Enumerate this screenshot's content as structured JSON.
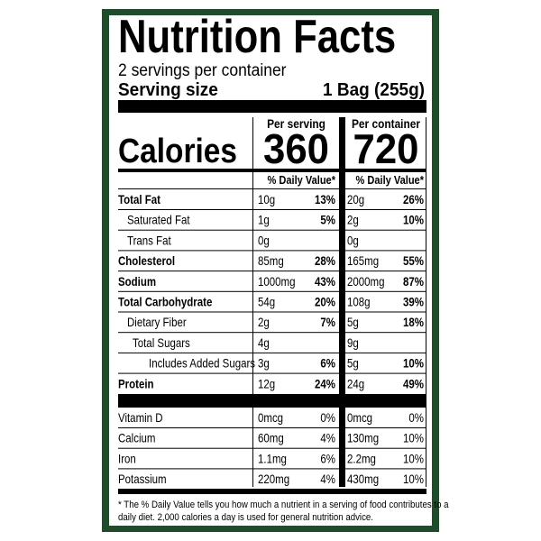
{
  "title": "Nutrition Facts",
  "servings": "2 servings per container",
  "serving_size": {
    "label": "Serving size",
    "value": "1 Bag (255g)"
  },
  "columns": {
    "per_serving": "Per serving",
    "per_container": "Per container",
    "daily_value_serving": "% Daily Value*",
    "daily_value_container": "% Daily Value*"
  },
  "calories": {
    "label": "Calories",
    "per_serving": "360",
    "per_container": "720"
  },
  "nutrients": [
    {
      "name": "Total Fat",
      "serving": "10g",
      "serving_dv": "13%",
      "container": "20g",
      "container_dv": "26%"
    },
    {
      "name": "Saturated Fat",
      "serving": "1g",
      "serving_dv": "5%",
      "container": "2g",
      "container_dv": "10%"
    },
    {
      "name": "Trans Fat",
      "serving": "0g",
      "container": "0g"
    },
    {
      "name": "Cholesterol",
      "serving": "85mg",
      "serving_dv": "28%",
      "container": "165mg",
      "container_dv": "55%"
    },
    {
      "name": "Sodium",
      "serving": "1000mg",
      "serving_dv": "43%",
      "container": "2000mg",
      "container_dv": "87%"
    },
    {
      "name": "Total Carbohydrate",
      "serving": "54g",
      "serving_dv": "20%",
      "container": "108g",
      "container_dv": "39%"
    },
    {
      "name": "Dietary Fiber",
      "serving": "2g",
      "serving_dv": "7%",
      "container": "5g",
      "container_dv": "18%"
    },
    {
      "name": "Total Sugars",
      "serving": "4g",
      "container": "9g"
    },
    {
      "name": "Includes Added Sugars",
      "serving": "3g",
      "serving_dv": "6%",
      "container": "5g",
      "container_dv": "10%"
    },
    {
      "name": "Protein",
      "serving": "12g",
      "serving_dv": "24%",
      "container": "24g",
      "container_dv": "49%"
    }
  ],
  "vitamins": [
    {
      "name": "Vitamin D",
      "serving": "0mcg",
      "serving_dv": "0%",
      "container": "0mcg",
      "container_dv": "0%"
    },
    {
      "name": "Calcium",
      "serving": "60mg",
      "serving_dv": "4%",
      "container": "130mg",
      "container_dv": "10%"
    },
    {
      "name": "Iron",
      "serving": "1.1mg",
      "serving_dv": "6%",
      "container": "2.2mg",
      "container_dv": "10%"
    },
    {
      "name": "Potassium",
      "serving": "220mg",
      "serving_dv": "4%",
      "container": "430mg",
      "container_dv": "10%"
    }
  ],
  "footnote": [
    "* The % Daily Value tells you how much a nutrient in a serving of food contributes to a",
    "daily diet. 2,000 calories a day is used for general nutrition advice."
  ]
}
